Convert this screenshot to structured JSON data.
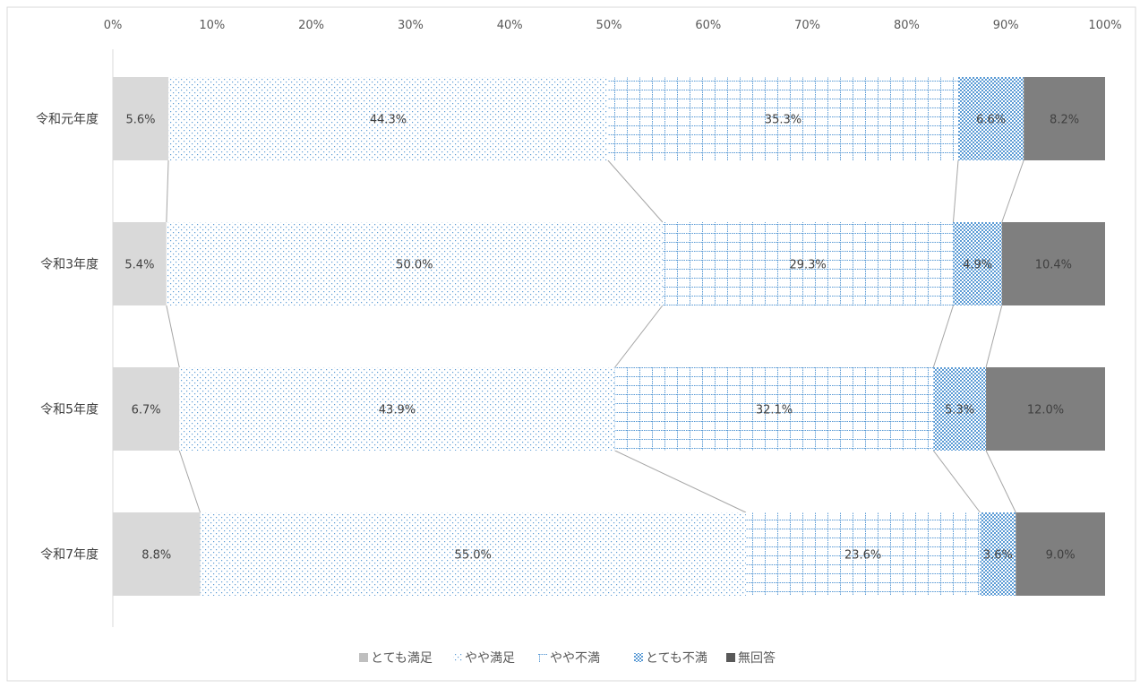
{
  "chart_data": {
    "type": "bar",
    "orientation": "horizontal",
    "stacked": "percent",
    "categories": [
      "令和元年度",
      "令和3年度",
      "令和5年度",
      "令和7年度"
    ],
    "series": [
      {
        "name": "とても満足",
        "values": [
          5.6,
          5.4,
          6.7,
          8.8
        ],
        "color": "#d9d9d9",
        "pattern": "solid-light"
      },
      {
        "name": "やや満足",
        "values": [
          44.3,
          50.0,
          43.9,
          55.0
        ],
        "color": "#5b9bd5",
        "pattern": "dots"
      },
      {
        "name": "やや不満",
        "values": [
          35.3,
          29.3,
          32.1,
          23.6
        ],
        "color": "#5b9bd5",
        "pattern": "grid"
      },
      {
        "name": "とても不満",
        "values": [
          6.6,
          4.9,
          5.3,
          3.6
        ],
        "color": "#5b9bd5",
        "pattern": "checker"
      },
      {
        "name": "無回答",
        "values": [
          8.2,
          10.4,
          12.0,
          9.0
        ],
        "color": "#7f7f7f",
        "pattern": "solid-dark"
      }
    ],
    "data_labels": [
      [
        "5.6%",
        "44.3%",
        "35.3%",
        "6.6%",
        "8.2%"
      ],
      [
        "5.4%",
        "50.0%",
        "29.3%",
        "4.9%",
        "10.4%"
      ],
      [
        "6.7%",
        "43.9%",
        "32.1%",
        "5.3%",
        "12.0%"
      ],
      [
        "8.8%",
        "55.0%",
        "23.6%",
        "3.6%",
        "9.0%"
      ]
    ],
    "x_axis": {
      "position": "top",
      "range": [
        0,
        100
      ],
      "ticks": [
        "0%",
        "10%",
        "20%",
        "30%",
        "40%",
        "50%",
        "60%",
        "70%",
        "80%",
        "90%",
        "100%"
      ]
    },
    "series_lines": true,
    "grid": false,
    "legend_position": "bottom"
  }
}
